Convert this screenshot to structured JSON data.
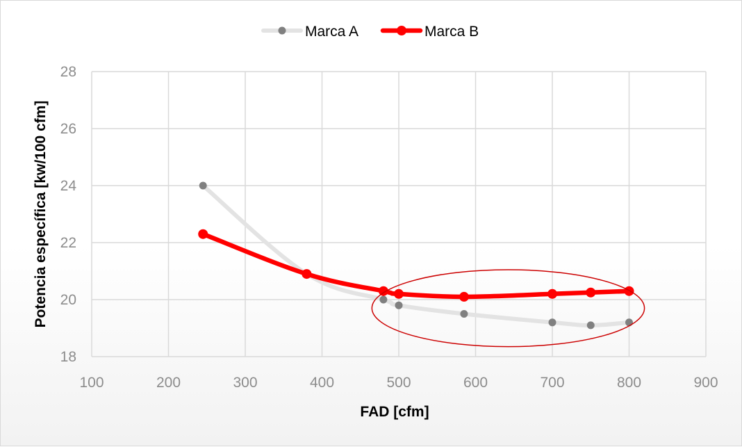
{
  "chart_data": {
    "type": "line",
    "title": "",
    "xlabel": "FAD [cfm]",
    "ylabel": "Potencia específica [kw/100 cfm]",
    "xlim": [
      100,
      900
    ],
    "ylim": [
      18,
      28
    ],
    "xticks": [
      100,
      200,
      300,
      400,
      500,
      600,
      700,
      800,
      900
    ],
    "yticks": [
      18,
      20,
      22,
      24,
      26,
      28
    ],
    "grid": true,
    "legend_position": "top-center",
    "series": [
      {
        "name": "Marca A",
        "color": "#e3e3e3",
        "marker_color": "#808080",
        "x": [
          245,
          380,
          480,
          500,
          585,
          700,
          750,
          800
        ],
        "y": [
          24.0,
          20.9,
          20.0,
          19.8,
          19.5,
          19.2,
          19.1,
          19.2
        ]
      },
      {
        "name": "Marca B",
        "color": "#ff0000",
        "marker_color": "#ff0000",
        "x": [
          245,
          380,
          480,
          500,
          585,
          700,
          750,
          800
        ],
        "y": [
          22.3,
          20.9,
          20.3,
          20.2,
          20.1,
          20.2,
          20.25,
          20.3
        ]
      }
    ],
    "annotations": [
      {
        "type": "ellipse",
        "color": "#cc0000",
        "x_range": [
          465,
          820
        ],
        "y_range": [
          18.35,
          21.05
        ]
      }
    ]
  }
}
